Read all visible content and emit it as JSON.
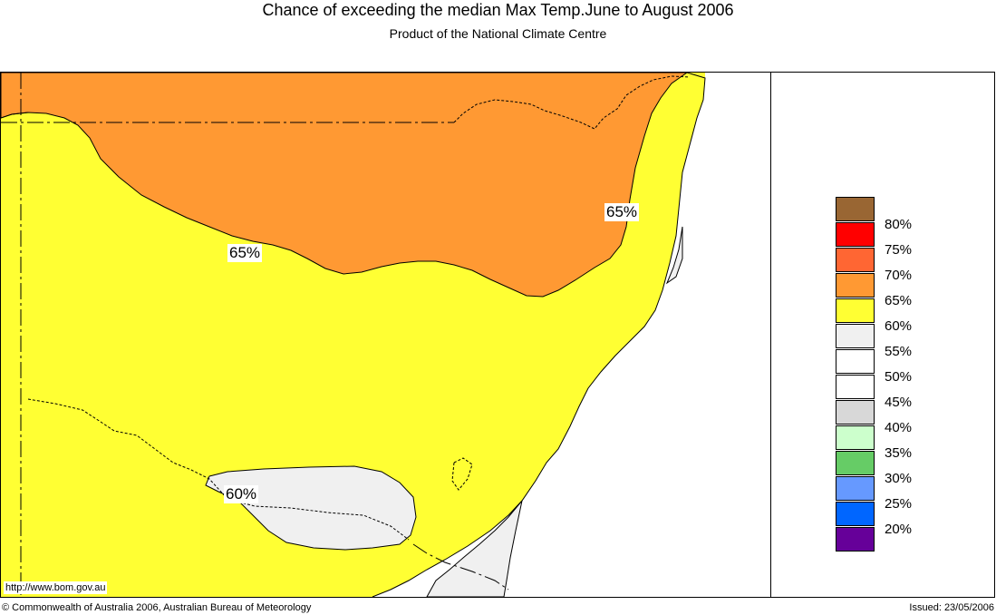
{
  "header": {
    "title": "Chance of exceeding the median Max Temp.June to August 2006",
    "subtitle": "Product of the National Climate Centre"
  },
  "map": {
    "contour_labels": [
      "65%",
      "65%",
      "60%"
    ],
    "colors": {
      "orange_65": "#FF9933",
      "yellow_60": "#FFFF33",
      "light_grey_55": "#F0F0F0",
      "white_50": "#FFFFFF"
    }
  },
  "legend": {
    "items": [
      {
        "label": "80%",
        "color": "#996633"
      },
      {
        "label": "75%",
        "color": "#FF0000"
      },
      {
        "label": "70%",
        "color": "#FF6633"
      },
      {
        "label": "65%",
        "color": "#FF9933"
      },
      {
        "label": "60%",
        "color": "#FFFF33"
      },
      {
        "label": "55%",
        "color": "#F0F0F0"
      },
      {
        "label": "50%",
        "color": "#FFFFFF"
      },
      {
        "label": "45%",
        "color": "#FFFFFF"
      },
      {
        "label": "40%",
        "color": "#D8D8D8"
      },
      {
        "label": "35%",
        "color": "#CCFFCC"
      },
      {
        "label": "30%",
        "color": "#66CC66"
      },
      {
        "label": "25%",
        "color": "#6699FF"
      },
      {
        "label": "20%",
        "color": "#0066FF"
      }
    ],
    "bottom_color": "#660099"
  },
  "footer": {
    "url": "http://www.bom.gov.au",
    "copyright": "© Commonwealth of Australia 2006, Australian Bureau of Meteorology",
    "issued": "Issued: 23/05/2006"
  }
}
